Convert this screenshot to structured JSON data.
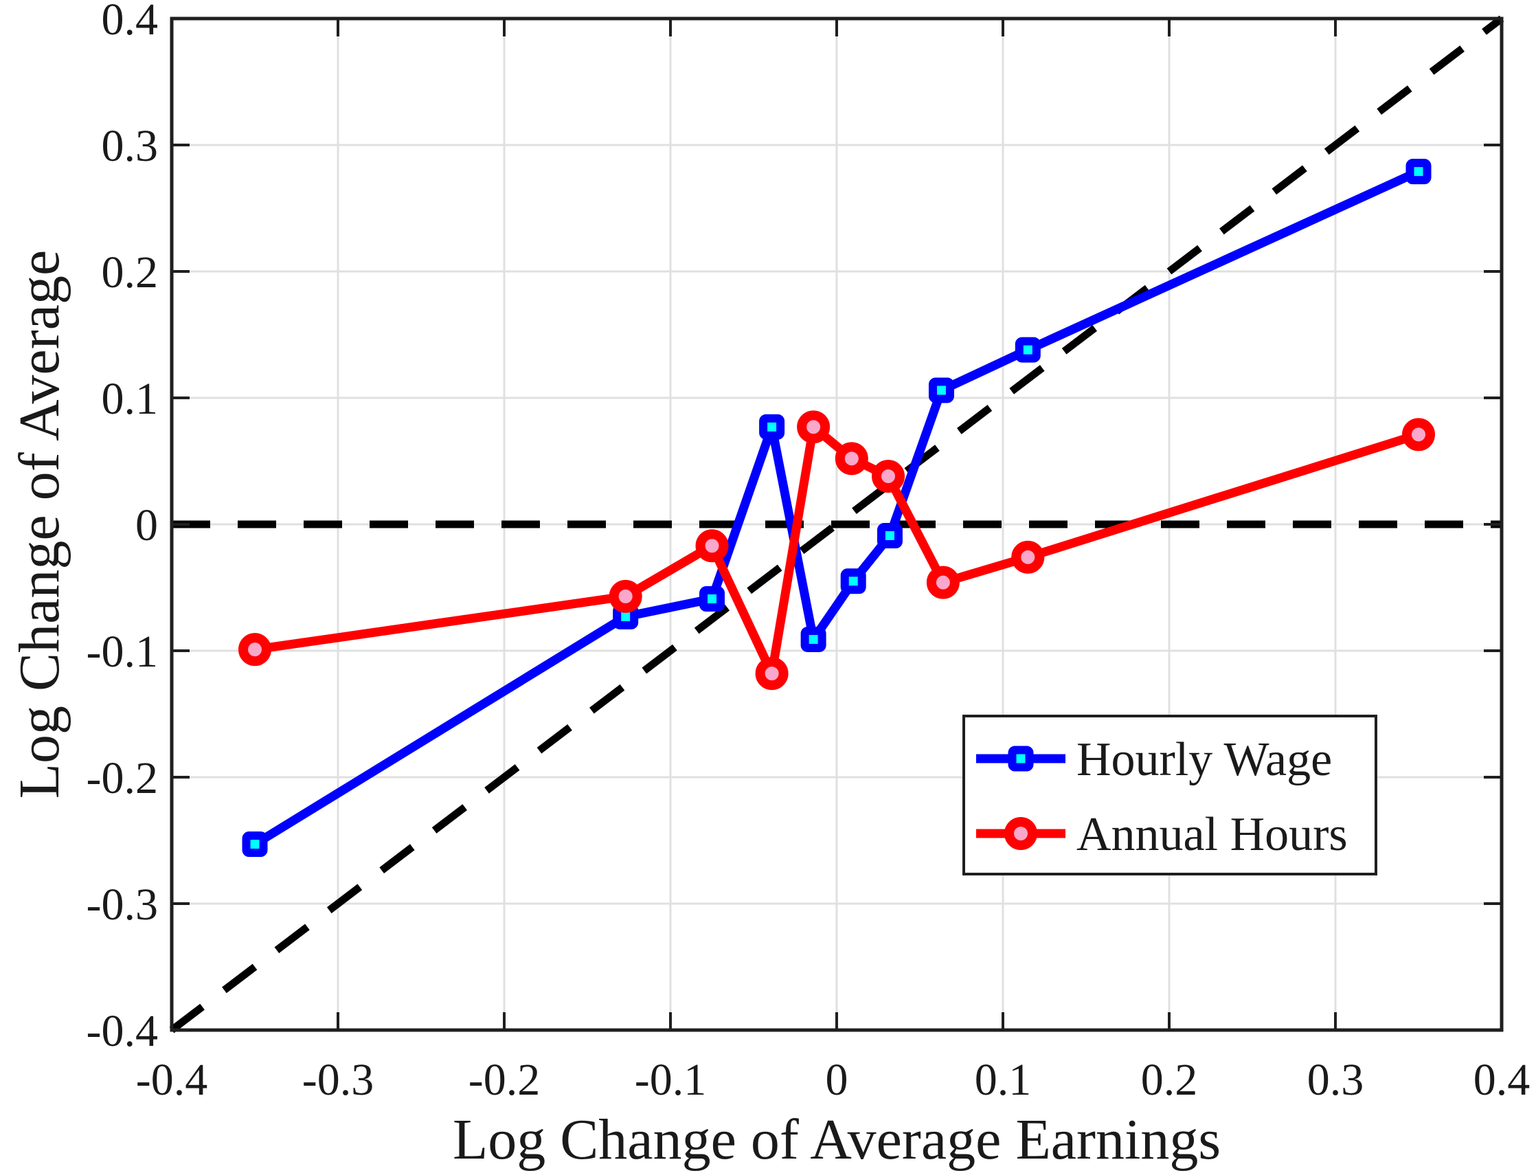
{
  "figure": {
    "background": "#FFFFFF",
    "plot_background": "#FFFFFF"
  },
  "chart_data": {
    "type": "line",
    "title": "",
    "xlabel": "Log Change of Average Earnings",
    "ylabel": "Log Change of Average",
    "xlim": [
      -0.4,
      0.4
    ],
    "ylim": [
      -0.4,
      0.4
    ],
    "xticks": {
      "values": [
        -0.4,
        -0.3,
        -0.2,
        -0.1,
        0,
        0.1,
        0.2,
        0.3,
        0.4
      ],
      "labels": [
        "-0.4",
        "-0.3",
        "-0.2",
        "-0.1",
        "0",
        "0.1",
        "0.2",
        "0.3",
        "0.4"
      ]
    },
    "yticks": {
      "values": [
        -0.4,
        -0.3,
        -0.2,
        -0.1,
        0,
        0.1,
        0.2,
        0.3,
        0.4
      ],
      "labels": [
        "-0.4",
        "-0.3",
        "-0.2",
        "-0.1",
        "0",
        "0.1",
        "0.2",
        "0.3",
        "0.4"
      ]
    },
    "grid": true,
    "grid_color": "#E0E0E0",
    "axis_color": "#1F1F1F",
    "text_color": "#1A1A1A",
    "reference_lines": [
      {
        "name": "45-degree-line",
        "type": "diagonal",
        "from": [
          -0.4,
          -0.4
        ],
        "to": [
          0.4,
          0.4
        ],
        "style": "dashed",
        "color": "#000000"
      },
      {
        "name": "zero-line",
        "type": "horizontal",
        "y": 0,
        "style": "dashed",
        "color": "#000000"
      }
    ],
    "series": [
      {
        "name": "Hourly Wage",
        "color": "#0000FF",
        "marker": "square",
        "marker_face": "#00FFFF",
        "points": [
          [
            -0.35,
            -0.253
          ],
          [
            -0.127,
            -0.073
          ],
          [
            -0.075,
            -0.059
          ],
          [
            -0.039,
            0.077
          ],
          [
            -0.014,
            -0.091
          ],
          [
            0.01,
            -0.045
          ],
          [
            0.032,
            -0.009
          ],
          [
            0.063,
            0.106
          ],
          [
            0.115,
            0.138
          ],
          [
            0.35,
            0.279
          ]
        ]
      },
      {
        "name": "Annual Hours",
        "color": "#FF0000",
        "marker": "circle",
        "marker_face": "#F9A7CB",
        "points": [
          [
            -0.35,
            -0.099
          ],
          [
            -0.127,
            -0.057
          ],
          [
            -0.075,
            -0.017
          ],
          [
            -0.039,
            -0.118
          ],
          [
            -0.014,
            0.077
          ],
          [
            0.009,
            0.052
          ],
          [
            0.031,
            0.038
          ],
          [
            0.064,
            -0.046
          ],
          [
            0.115,
            -0.026
          ],
          [
            0.35,
            0.071
          ]
        ]
      }
    ],
    "legend": {
      "position": "inside-right-lower",
      "entries": [
        "Hourly Wage",
        "Annual Hours"
      ]
    }
  }
}
